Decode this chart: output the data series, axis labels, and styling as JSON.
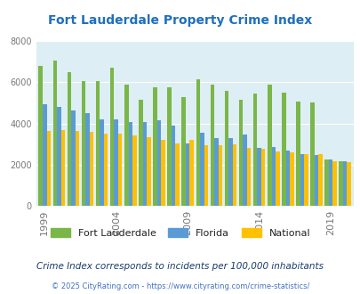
{
  "title": "Fort Lauderdale Property Crime Index",
  "years": [
    1999,
    2000,
    2001,
    2002,
    2003,
    2004,
    2005,
    2006,
    2007,
    2008,
    2009,
    2010,
    2011,
    2012,
    2013,
    2014,
    2015,
    2016,
    2017,
    2018,
    2019,
    2020
  ],
  "fort_lauderdale": [
    6800,
    7050,
    6500,
    6050,
    6050,
    6700,
    5900,
    5150,
    5750,
    5750,
    5300,
    6150,
    5900,
    5600,
    5150,
    5450,
    5900,
    5500,
    5050,
    5000,
    2250,
    2150
  ],
  "florida": [
    4950,
    4800,
    4650,
    4500,
    4200,
    4200,
    4050,
    4050,
    4150,
    3900,
    3050,
    3550,
    3300,
    3300,
    3450,
    2800,
    2850,
    2700,
    2500,
    2450,
    2250,
    2150
  ],
  "national": [
    3650,
    3700,
    3650,
    3600,
    3500,
    3500,
    3400,
    3350,
    3200,
    3050,
    3200,
    2950,
    2950,
    3000,
    2800,
    2750,
    2650,
    2600,
    2500,
    2500,
    2150,
    2100
  ],
  "color_fl": "#7ab648",
  "color_florida": "#5b9bd5",
  "color_national": "#ffc000",
  "ylim": [
    0,
    8000
  ],
  "yticks": [
    0,
    2000,
    4000,
    6000,
    8000
  ],
  "bg_color": "#ddeef4",
  "title_color": "#1f6fbf",
  "subtitle": "Crime Index corresponds to incidents per 100,000 inhabitants",
  "subtitle_color": "#1a3a6b",
  "footer": "© 2025 CityRating.com - https://www.cityrating.com/crime-statistics/",
  "footer_color": "#4472c4",
  "legend_labels": [
    "Fort Lauderdale",
    "Florida",
    "National"
  ],
  "xlabel_ticks": [
    1999,
    2004,
    2009,
    2014,
    2019
  ],
  "bar_width": 0.28
}
